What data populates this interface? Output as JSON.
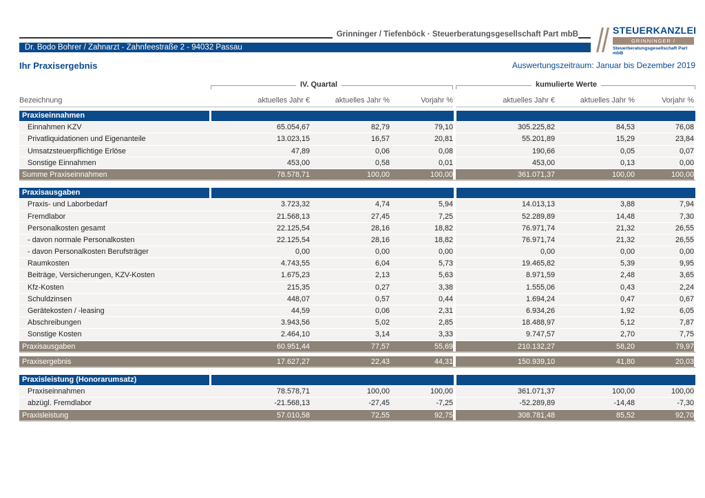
{
  "header": {
    "firm": "Grinninger / Tiefenböck · Steuerberatungsgesellschaft Part mbB",
    "client": "Dr. Bodo Bohrer / Zahnarzt  -  Zahnfeestraße 2  -  94032 Passau",
    "logo_title": "STEUERKANZLEI",
    "logo_names": "GRINNINGER / TIEFENBÖCK",
    "logo_sub": "Steuerberatungsgesellschaft Part mbB",
    "colors": {
      "blue": "#0b4a8b",
      "brown": "#8d8376"
    }
  },
  "title": "Ihr Praxisergebnis",
  "period": "Auswertungszeitraum: Januar bis Dezember 2019",
  "groups": {
    "quarter": "IV. Quartal",
    "cumulative": "kumulierte Werte"
  },
  "columns": [
    "Bezeichnung",
    "aktuelles Jahr €",
    "aktuelles Jahr %",
    "Vorjahr %",
    "aktuelles Jahr €",
    "aktuelles Jahr %",
    "Vorjahr %"
  ],
  "sections": [
    {
      "title": "Praxiseinnahmen",
      "rows": [
        [
          "Einnahmen KZV",
          "65.054,67",
          "82,79",
          "79,10",
          "305.225,82",
          "84,53",
          "76,08"
        ],
        [
          "Privatliquidationen und Eigenanteile",
          "13.023,15",
          "16,57",
          "20,81",
          "55.201,89",
          "15,29",
          "23,84"
        ],
        [
          "Umsatzsteuerpflichtige Erlöse",
          "47,89",
          "0,06",
          "0,08",
          "190,66",
          "0,05",
          "0,07"
        ],
        [
          "Sonstige Einnahmen",
          "453,00",
          "0,58",
          "0,01",
          "453,00",
          "0,13",
          "0,00"
        ]
      ],
      "sum": [
        "Summe Praxiseinnahmen",
        "78.578,71",
        "100,00",
        "100,00",
        "361.071,37",
        "100,00",
        "100,00"
      ]
    },
    {
      "title": "Praxisausgaben",
      "rows": [
        [
          "Praxis- und Laborbedarf",
          "3.723,32",
          "4,74",
          "5,94",
          "14.013,13",
          "3,88",
          "7,94"
        ],
        [
          "Fremdlabor",
          "21.568,13",
          "27,45",
          "7,25",
          "52.289,89",
          "14,48",
          "7,30"
        ],
        [
          "Personalkosten gesamt",
          "22.125,54",
          "28,16",
          "18,82",
          "76.971,74",
          "21,32",
          "26,55"
        ],
        [
          "- davon normale Personalkosten",
          "22.125,54",
          "28,16",
          "18,82",
          "76.971,74",
          "21,32",
          "26,55"
        ],
        [
          "- davon Personalkosten Berufsträger",
          "0,00",
          "0,00",
          "0,00",
          "0,00",
          "0,00",
          "0,00"
        ],
        [
          "Raumkosten",
          "4.743,55",
          "6,04",
          "5,73",
          "19.465,82",
          "5,39",
          "9,95"
        ],
        [
          "Beiträge, Versicherungen, KZV-Kosten",
          "1.675,23",
          "2,13",
          "5,63",
          "8.971,59",
          "2,48",
          "3,65"
        ],
        [
          "Kfz-Kosten",
          "215,35",
          "0,27",
          "3,38",
          "1.555,06",
          "0,43",
          "2,24"
        ],
        [
          "Schuldzinsen",
          "448,07",
          "0,57",
          "0,44",
          "1.694,24",
          "0,47",
          "0,67"
        ],
        [
          "Gerätekosten / -leasing",
          "44,59",
          "0,06",
          "2,31",
          "6.934,26",
          "1,92",
          "6,05"
        ],
        [
          "Abschreibungen",
          "3.943,56",
          "5,02",
          "2,85",
          "18.488,97",
          "5,12",
          "7,87"
        ],
        [
          "Sonstige Kosten",
          "2.464,10",
          "3,14",
          "3,33",
          "9.747,57",
          "2,70",
          "7,75"
        ]
      ],
      "sum": [
        "Praxisausgaben",
        "60.951,44",
        "77,57",
        "55,69",
        "210.132,27",
        "58,20",
        "79,97"
      ]
    }
  ],
  "result": [
    "Praxisergebnis",
    "17.627,27",
    "22,43",
    "44,31",
    "150.939,10",
    "41,80",
    "20,03"
  ],
  "performance": {
    "title": "Praxisleistung (Honorarumsatz)",
    "rows": [
      [
        "Praxiseinnahmen",
        "78.578,71",
        "100,00",
        "100,00",
        "361.071,37",
        "100,00",
        "100,00"
      ],
      [
        "abzügl. Fremdlabor",
        "-21.568,13",
        "-27,45",
        "-7,25",
        "-52.289,89",
        "-14,48",
        "-7,30"
      ]
    ],
    "sum": [
      "Praxisleistung",
      "57.010,58",
      "72,55",
      "92,75",
      "308.781,48",
      "85,52",
      "92,70"
    ]
  }
}
